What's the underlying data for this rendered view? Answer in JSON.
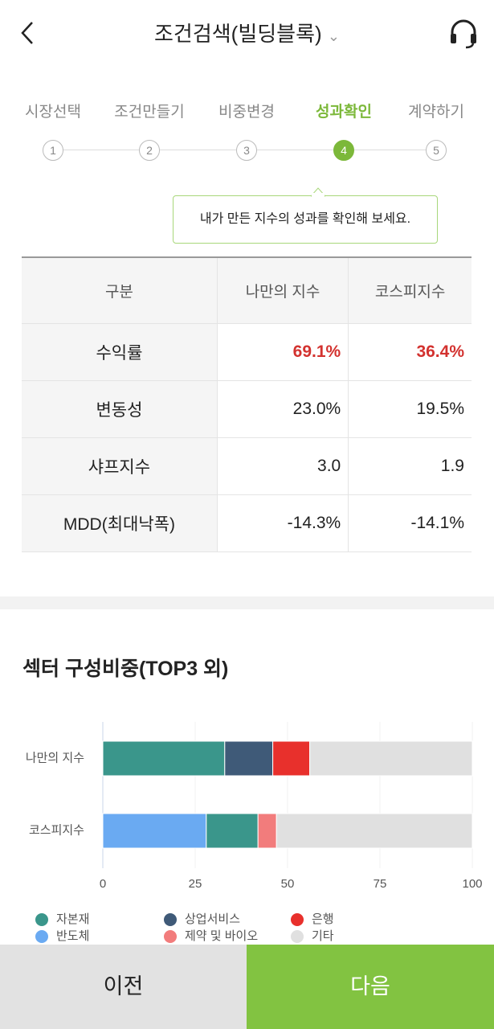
{
  "header": {
    "title": "조건검색(빌딩블록)"
  },
  "steps": [
    {
      "number": "1",
      "label": "시장선택"
    },
    {
      "number": "2",
      "label": "조건만들기"
    },
    {
      "number": "3",
      "label": "비중변경"
    },
    {
      "number": "4",
      "label": "성과확인"
    },
    {
      "number": "5",
      "label": "계약하기"
    }
  ],
  "tooltip": "내가 만든 지수의 성과를 확인해 보세요.",
  "table": {
    "header": [
      "구분",
      "나만의 지수",
      "코스피지수"
    ],
    "rows": [
      [
        "수익률",
        "69.1%",
        "36.4%"
      ],
      [
        "변동성",
        "23.0%",
        "19.5%"
      ],
      [
        "샤프지수",
        "3.0",
        "1.9"
      ],
      [
        "MDD(최대낙폭)",
        "-14.3%",
        "-14.1%"
      ]
    ]
  },
  "section_title": "섹터 구성비중(TOP3 외)",
  "chart_data": {
    "type": "stacked-barh",
    "categories": [
      "나만의 지수",
      "코스피지수"
    ],
    "series": [
      {
        "name": "반도체",
        "color": "#6aaaf2",
        "values": [
          null,
          28
        ]
      },
      {
        "name": "자본재",
        "color": "#3a968b",
        "values": [
          33,
          14
        ]
      },
      {
        "name": "상업서비스",
        "color": "#3f5a78",
        "values": [
          13,
          null
        ]
      },
      {
        "name": "제약 및 바이오",
        "color": "#f27c7c",
        "values": [
          null,
          5
        ]
      },
      {
        "name": "은행",
        "color": "#e8302c",
        "values": [
          10,
          null
        ]
      },
      {
        "name": "기타",
        "color": "#e0e0e0",
        "values": [
          44,
          53
        ]
      }
    ],
    "xlim": [
      0,
      100
    ],
    "xticks": [
      0,
      25,
      50,
      75,
      100
    ]
  },
  "buttons": {
    "prev": "이전",
    "next": "다음"
  }
}
